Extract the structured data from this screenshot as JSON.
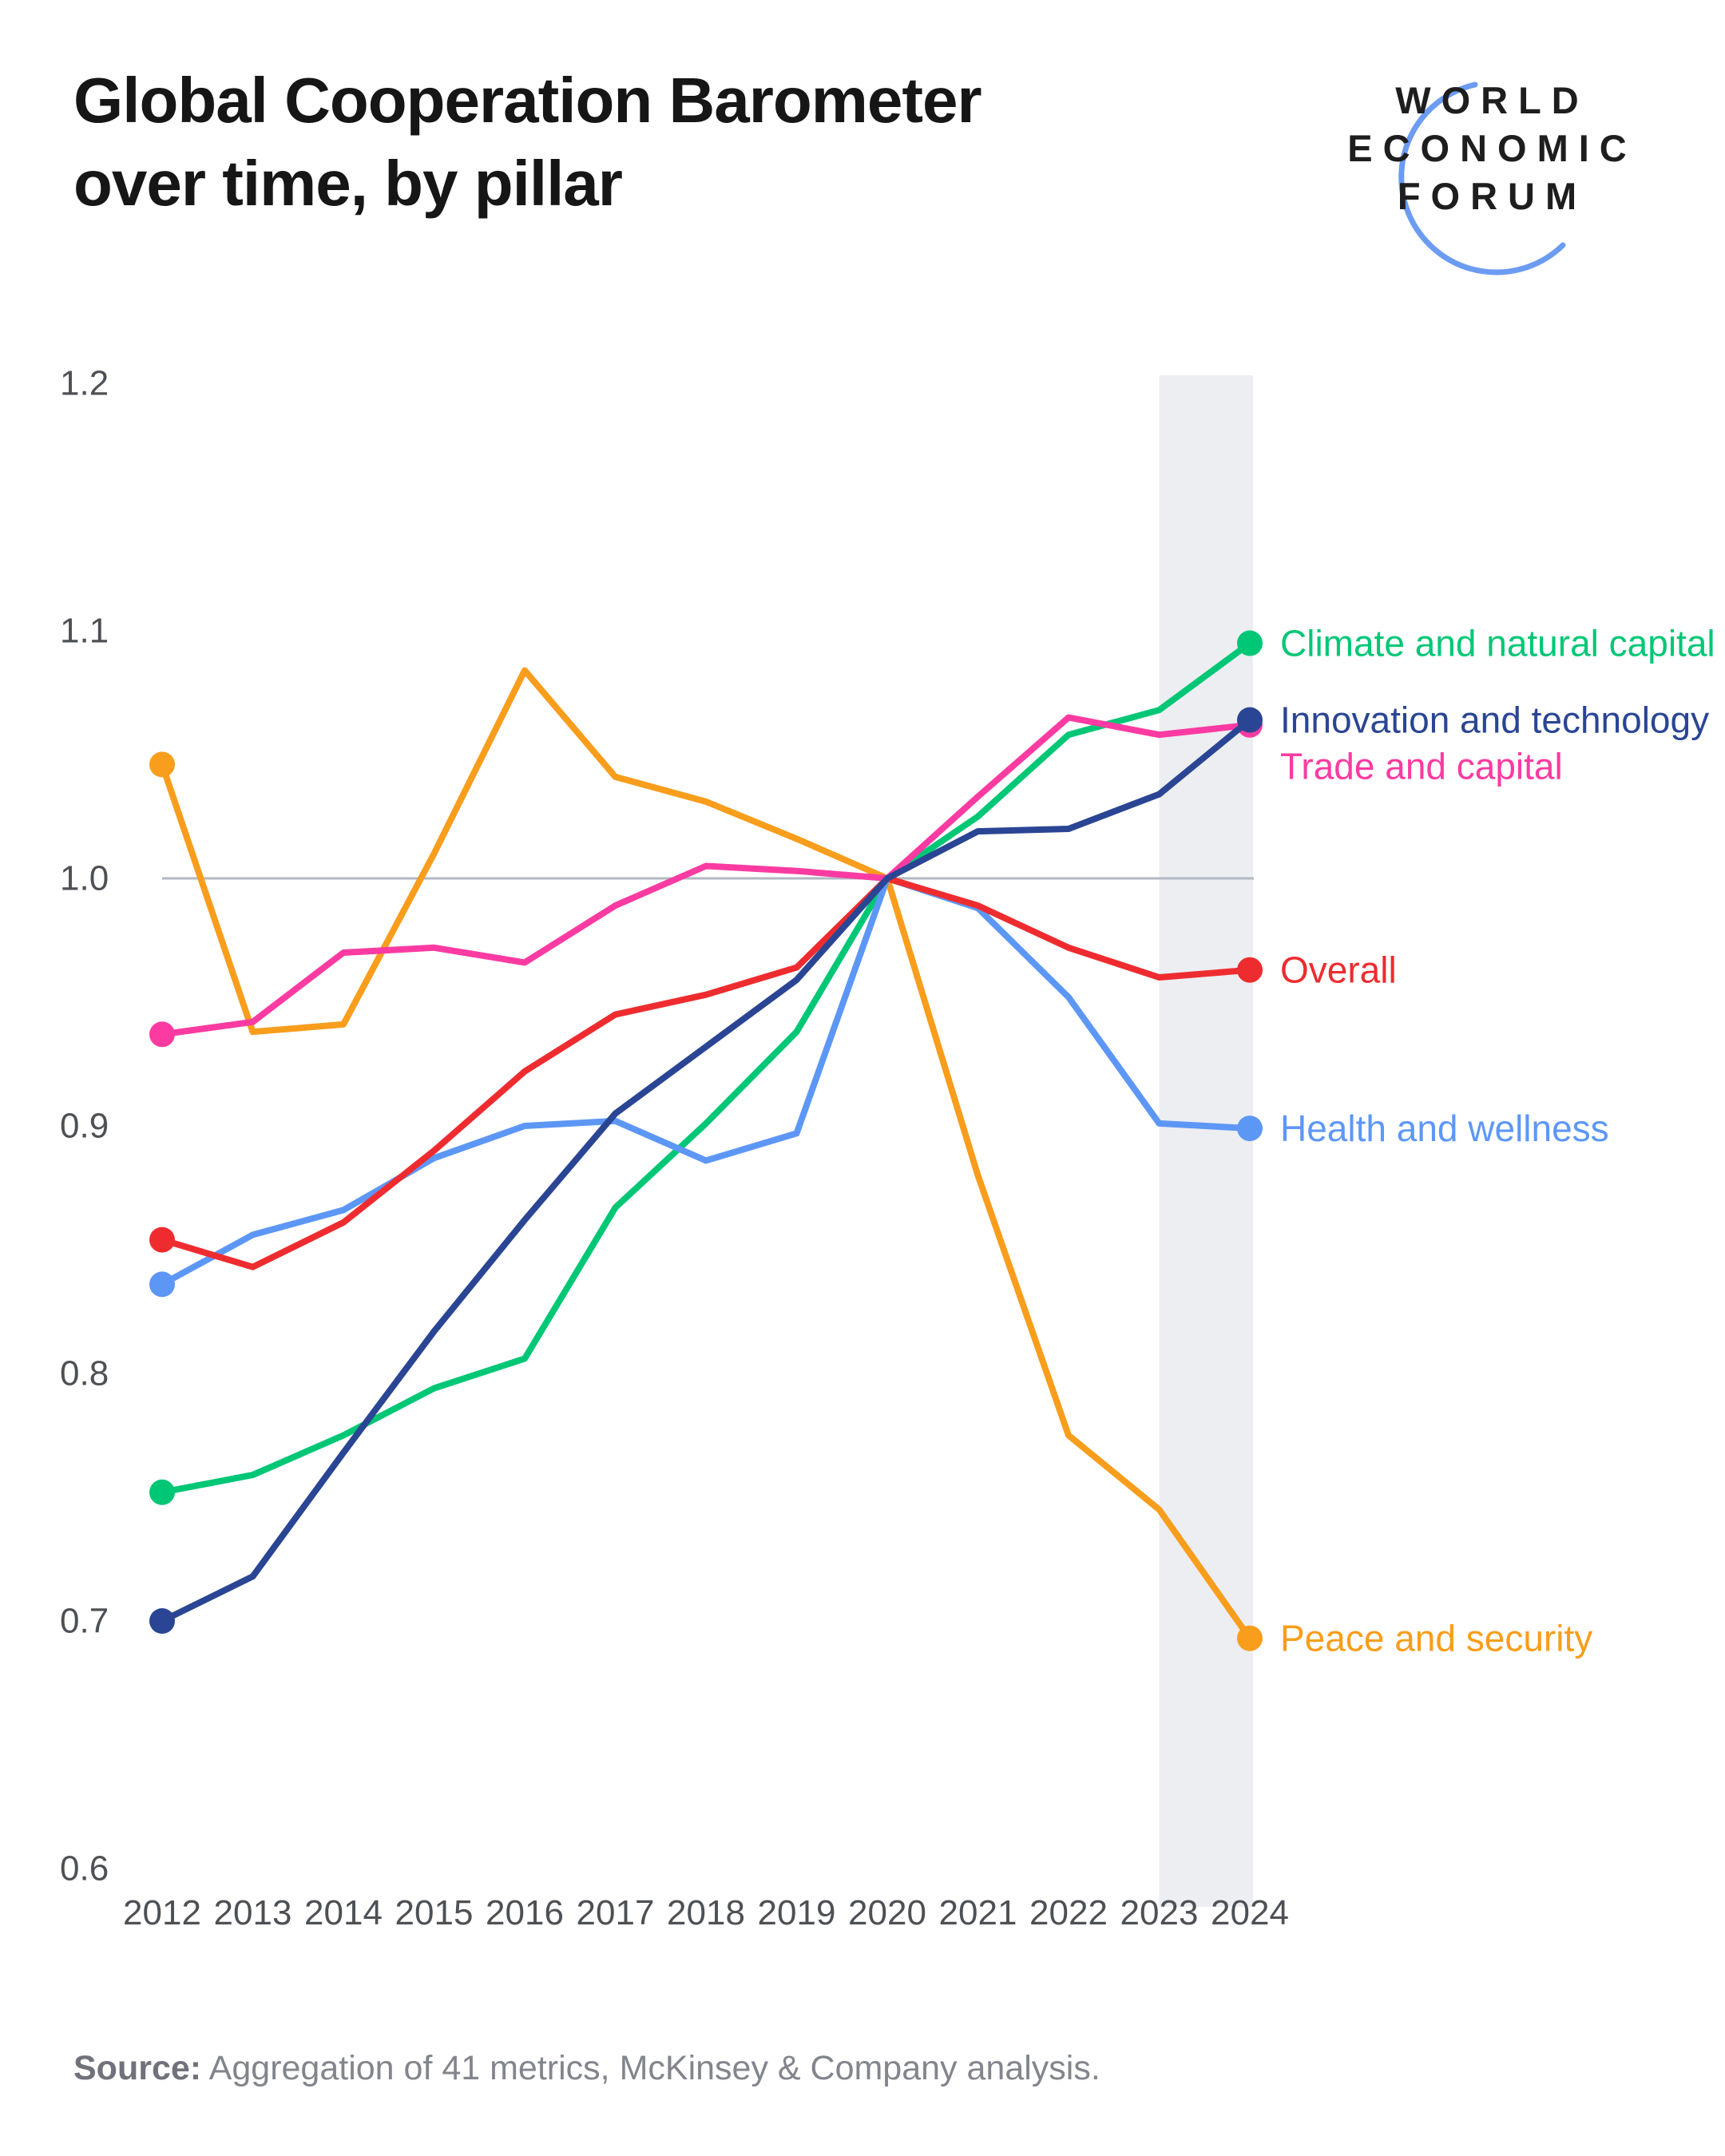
{
  "header": {
    "title_line1": "Global Cooperation Barometer",
    "title_line2": "over time, by pillar"
  },
  "logo": {
    "lines": [
      "WORLD",
      "ECONOMIC",
      "FORUM"
    ],
    "arc_color": "#6c9bf2",
    "text_color": "#1e1e1e"
  },
  "source": {
    "label": "Source:",
    "text": " Aggregation of 41 metrics, McKinsey & Company analysis."
  },
  "chart_data": {
    "type": "line",
    "title": "Global Cooperation Barometer over time, by pillar",
    "x": [
      2012,
      2013,
      2014,
      2015,
      2016,
      2017,
      2018,
      2019,
      2020,
      2021,
      2022,
      2023,
      2024
    ],
    "ylim": [
      0.6,
      1.2
    ],
    "ytick_labels": [
      "1.2",
      "1.1",
      "1.0",
      "0.9",
      "0.8",
      "0.7",
      "0.6"
    ],
    "gridline_at": 1.0,
    "grid": "single reference line at 1.0 only",
    "legend_position": "colored end labels at right of 2024 points",
    "axis_text_color": "#4d5055",
    "gridline_color": "#b2b8c3",
    "highlight_band": {
      "from_year": 2023,
      "to_year": 2024,
      "color": "#eceef2"
    },
    "point_markers": "dots at first (2012) and last (2024) points of each series",
    "series": [
      {
        "name": "Climate and natural capital",
        "color": "#00c776",
        "values": [
          0.752,
          0.759,
          0.775,
          0.794,
          0.806,
          0.867,
          0.901,
          0.938,
          1.0,
          1.025,
          1.058,
          1.068,
          1.095
        ]
      },
      {
        "name": "Innovation and technology",
        "color": "#2a4593",
        "values": [
          0.7,
          0.718,
          0.768,
          0.817,
          0.862,
          0.905,
          0.932,
          0.959,
          1.0,
          1.019,
          1.02,
          1.034,
          1.064
        ]
      },
      {
        "name": "Trade and capital",
        "color": "#fb3ba2",
        "values": [
          0.937,
          0.942,
          0.97,
          0.972,
          0.966,
          0.989,
          1.005,
          1.003,
          1.0,
          1.033,
          1.065,
          1.058,
          1.062
        ]
      },
      {
        "name": "Overall",
        "color": "#ee2c2f",
        "values": [
          0.854,
          0.843,
          0.861,
          0.89,
          0.922,
          0.945,
          0.953,
          0.964,
          1.0,
          0.989,
          0.972,
          0.96,
          0.963
        ]
      },
      {
        "name": "Health and wellness",
        "color": "#5d97f6",
        "values": [
          0.836,
          0.856,
          0.866,
          0.887,
          0.9,
          0.902,
          0.886,
          0.897,
          1.0,
          0.988,
          0.952,
          0.901,
          0.899
        ]
      },
      {
        "name": "Peace and security",
        "color": "#f89d1c",
        "values": [
          1.046,
          0.938,
          0.941,
          1.01,
          1.084,
          1.041,
          1.031,
          1.016,
          1.0,
          0.88,
          0.775,
          0.745,
          0.693
        ]
      }
    ]
  }
}
